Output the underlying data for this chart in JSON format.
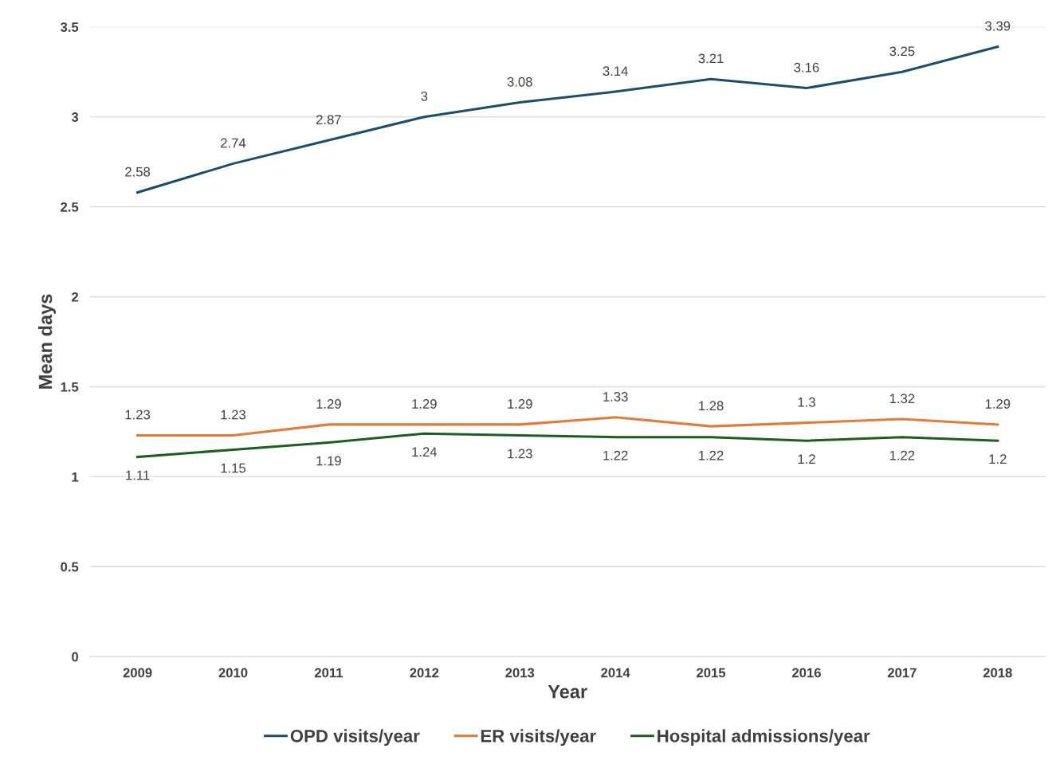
{
  "chart_data": {
    "type": "line",
    "xlabel": "Year",
    "ylabel": "Mean days",
    "categories": [
      "2009",
      "2010",
      "2011",
      "2012",
      "2013",
      "2014",
      "2015",
      "2016",
      "2017",
      "2018"
    ],
    "series": [
      {
        "name": "OPD visits/year",
        "color": "#1c4e6b",
        "values": [
          2.58,
          2.74,
          2.87,
          3,
          3.08,
          3.14,
          3.21,
          3.16,
          3.25,
          3.39
        ]
      },
      {
        "name": "ER visits/year",
        "color": "#e07b39",
        "values": [
          1.23,
          1.23,
          1.29,
          1.29,
          1.29,
          1.33,
          1.28,
          1.3,
          1.32,
          1.29
        ]
      },
      {
        "name": "Hospital admissions/year",
        "color": "#1f5c1f",
        "values": [
          1.11,
          1.15,
          1.19,
          1.24,
          1.23,
          1.22,
          1.22,
          1.2,
          1.22,
          1.2
        ]
      }
    ],
    "ylim": [
      0,
      3.5
    ],
    "yticks": [
      0,
      0.5,
      1,
      1.5,
      2,
      2.5,
      3,
      3.5
    ],
    "grid": "y",
    "legend": "bottom",
    "data_labels": true,
    "line_style": "solid"
  }
}
